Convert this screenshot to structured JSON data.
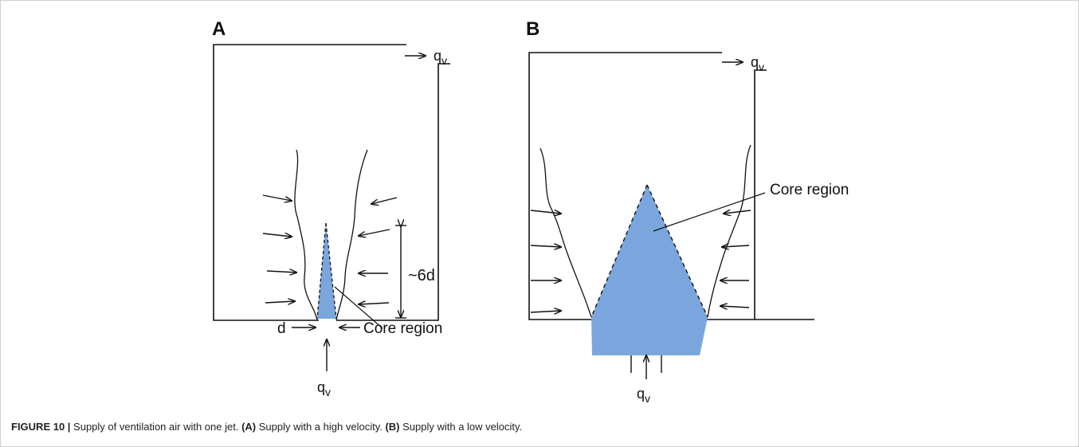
{
  "panels": {
    "a": {
      "letter": "A",
      "outlet_label": "qv",
      "inlet_label": "qv",
      "dimension_label": "~6d",
      "nozzle_label": "d",
      "core_label": "Core region"
    },
    "b": {
      "letter": "B",
      "outlet_label": "qv",
      "inlet_label": "qv",
      "core_label": "Core region"
    }
  },
  "colors": {
    "core_fill": "#7aa6dd",
    "line": "#111111"
  },
  "caption": {
    "figure_label": "FIGURE 10 |",
    "text": " Supply of ventilation air with one jet. ",
    "part_a_label": "(A)",
    "part_a_text": " Supply with a high velocity. ",
    "part_b_label": "(B)",
    "part_b_text": " Supply with a low velocity."
  }
}
